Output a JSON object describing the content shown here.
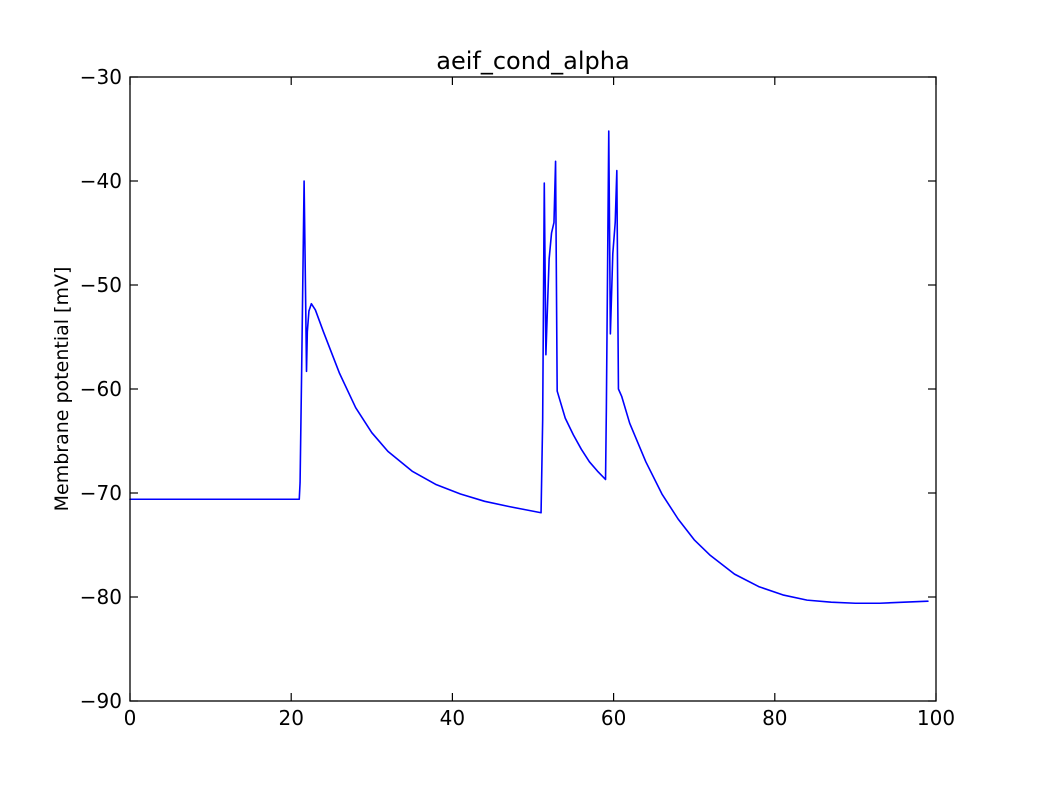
{
  "chart_data": {
    "type": "line",
    "title": "aeif_cond_alpha",
    "xlabel": "",
    "ylabel": "Membrane potential [mV]",
    "xlim": [
      0,
      100
    ],
    "ylim": [
      -90,
      -30
    ],
    "grid": false,
    "legend": "none",
    "x_ticks": [
      0,
      20,
      40,
      60,
      80,
      100
    ],
    "y_ticks": [
      -90,
      -80,
      -70,
      -60,
      -50,
      -40,
      -30
    ],
    "x_tick_labels": [
      "0",
      "20",
      "40",
      "60",
      "80",
      "100"
    ],
    "y_tick_labels": [
      "−90",
      "−80",
      "−70",
      "−60",
      "−50",
      "−40",
      "−30"
    ],
    "series": [
      {
        "color": "#0000ff",
        "points": [
          [
            0,
            -70.6
          ],
          [
            21.0,
            -70.6
          ],
          [
            21.1,
            -69.0
          ],
          [
            21.3,
            -58.0
          ],
          [
            21.6,
            -40.0
          ],
          [
            21.8,
            -52.0
          ],
          [
            21.9,
            -58.3
          ],
          [
            22.0,
            -54.5
          ],
          [
            22.2,
            -52.5
          ],
          [
            22.5,
            -51.8
          ],
          [
            23.0,
            -52.4
          ],
          [
            24.0,
            -54.5
          ],
          [
            26.0,
            -58.5
          ],
          [
            28.0,
            -61.8
          ],
          [
            30.0,
            -64.2
          ],
          [
            32.0,
            -66.0
          ],
          [
            35.0,
            -67.9
          ],
          [
            38.0,
            -69.2
          ],
          [
            41.0,
            -70.1
          ],
          [
            44.0,
            -70.8
          ],
          [
            47.0,
            -71.3
          ],
          [
            49.0,
            -71.6
          ],
          [
            51.0,
            -71.9
          ],
          [
            51.2,
            -63.0
          ],
          [
            51.4,
            -40.2
          ],
          [
            51.6,
            -56.7
          ],
          [
            51.8,
            -52.0
          ],
          [
            52.0,
            -47.5
          ],
          [
            52.3,
            -45.0
          ],
          [
            52.6,
            -44.0
          ],
          [
            52.8,
            -38.1
          ],
          [
            53.0,
            -60.2
          ],
          [
            54.0,
            -62.8
          ],
          [
            55.0,
            -64.4
          ],
          [
            56.0,
            -65.8
          ],
          [
            57.0,
            -67.0
          ],
          [
            58.0,
            -67.9
          ],
          [
            59.0,
            -68.7
          ],
          [
            59.1,
            -62.0
          ],
          [
            59.4,
            -35.2
          ],
          [
            59.6,
            -54.7
          ],
          [
            59.9,
            -47.0
          ],
          [
            60.2,
            -44.0
          ],
          [
            60.4,
            -39.0
          ],
          [
            60.6,
            -60.0
          ],
          [
            61.0,
            -60.7
          ],
          [
            62.0,
            -63.3
          ],
          [
            64.0,
            -67.0
          ],
          [
            66.0,
            -70.1
          ],
          [
            68.0,
            -72.5
          ],
          [
            70.0,
            -74.5
          ],
          [
            72.0,
            -76.0
          ],
          [
            75.0,
            -77.8
          ],
          [
            78.0,
            -79.0
          ],
          [
            81.0,
            -79.8
          ],
          [
            84.0,
            -80.3
          ],
          [
            87.0,
            -80.5
          ],
          [
            90.0,
            -80.6
          ],
          [
            93.0,
            -80.6
          ],
          [
            96.0,
            -80.5
          ],
          [
            99.0,
            -80.4
          ]
        ]
      }
    ]
  }
}
